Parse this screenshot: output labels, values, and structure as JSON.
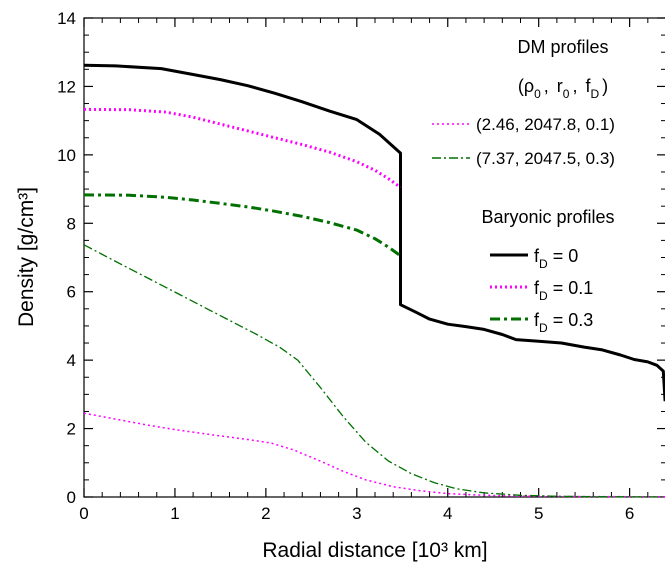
{
  "chart_data": {
    "type": "line",
    "xlabel": "Radial distance [10³ km]",
    "ylabel": "Density [g/cm³]",
    "xlim": [
      0,
      6.4
    ],
    "ylim": [
      0,
      14
    ],
    "xticks": [
      "0",
      "1",
      "2",
      "3",
      "4",
      "5",
      "6"
    ],
    "yticks": [
      "0",
      "2",
      "4",
      "6",
      "8",
      "10",
      "12",
      "14"
    ],
    "grid": false,
    "legend_placement": "top-right",
    "legend": {
      "dm_header": "DM profiles",
      "dm_params": {
        "open": "(",
        "rho": "ρ",
        "rho_sub": "0",
        "sep1": ",",
        "r": "r",
        "r_sub": "0",
        "sep2": ",",
        "f": "f",
        "f_sub": "D",
        "close": ")"
      },
      "dm_entries": [
        {
          "label": "(2.46, 2047.8, 0.1)"
        },
        {
          "label": "(7.37, 2047.5, 0.3)"
        }
      ],
      "baryonic_header": "Baryonic profiles",
      "baryonic_entries": [
        {
          "prefix": "f",
          "sub": "D",
          "suffix": " = 0"
        },
        {
          "prefix": "f",
          "sub": "D",
          "suffix": " = 0.1"
        },
        {
          "prefix": "f",
          "sub": "D",
          "suffix": " = 0.3"
        }
      ]
    },
    "series": [
      {
        "group": "baryonic",
        "color": "#000000",
        "style": "solid",
        "points": [
          [
            0,
            12.62
          ],
          [
            0.35,
            12.6
          ],
          [
            0.85,
            12.52
          ],
          [
            1.2,
            12.35
          ],
          [
            1.5,
            12.2
          ],
          [
            1.8,
            12.02
          ],
          [
            2.1,
            11.8
          ],
          [
            2.4,
            11.55
          ],
          [
            2.7,
            11.28
          ],
          [
            3.0,
            11.03
          ],
          [
            3.25,
            10.6
          ],
          [
            3.48,
            10.05
          ],
          [
            3.48,
            5.62
          ],
          [
            3.65,
            5.4
          ],
          [
            3.8,
            5.2
          ],
          [
            4.0,
            5.05
          ],
          [
            4.2,
            4.98
          ],
          [
            4.4,
            4.9
          ],
          [
            4.6,
            4.75
          ],
          [
            4.75,
            4.6
          ],
          [
            5.0,
            4.55
          ],
          [
            5.25,
            4.5
          ],
          [
            5.5,
            4.38
          ],
          [
            5.7,
            4.3
          ],
          [
            5.9,
            4.15
          ],
          [
            6.05,
            4.02
          ],
          [
            6.2,
            3.95
          ],
          [
            6.3,
            3.85
          ],
          [
            6.37,
            3.68
          ],
          [
            6.39,
            2.8
          ]
        ]
      },
      {
        "group": "baryonic",
        "color": "#ff00ff",
        "style": "dotted",
        "points": [
          [
            0,
            11.33
          ],
          [
            0.5,
            11.32
          ],
          [
            0.9,
            11.25
          ],
          [
            1.2,
            11.1
          ],
          [
            1.5,
            10.9
          ],
          [
            1.8,
            10.7
          ],
          [
            2.1,
            10.5
          ],
          [
            2.4,
            10.3
          ],
          [
            2.7,
            10.08
          ],
          [
            3.0,
            9.8
          ],
          [
            3.2,
            9.55
          ],
          [
            3.35,
            9.3
          ],
          [
            3.48,
            9.05
          ]
        ]
      },
      {
        "group": "baryonic",
        "color": "#007000",
        "style": "dashdot",
        "points": [
          [
            0,
            8.83
          ],
          [
            0.5,
            8.82
          ],
          [
            0.9,
            8.76
          ],
          [
            1.2,
            8.68
          ],
          [
            1.5,
            8.58
          ],
          [
            1.8,
            8.48
          ],
          [
            2.1,
            8.35
          ],
          [
            2.4,
            8.2
          ],
          [
            2.7,
            8.02
          ],
          [
            3.0,
            7.8
          ],
          [
            3.2,
            7.55
          ],
          [
            3.35,
            7.3
          ],
          [
            3.48,
            7.05
          ]
        ]
      },
      {
        "group": "dm",
        "color": "#ff00ff",
        "style": "dotted-thin",
        "points": [
          [
            0,
            2.45
          ],
          [
            0.3,
            2.3
          ],
          [
            0.7,
            2.1
          ],
          [
            1.0,
            1.97
          ],
          [
            1.4,
            1.82
          ],
          [
            1.8,
            1.68
          ],
          [
            2.05,
            1.58
          ],
          [
            2.3,
            1.38
          ],
          [
            2.6,
            1.05
          ],
          [
            2.85,
            0.75
          ],
          [
            3.1,
            0.5
          ],
          [
            3.4,
            0.3
          ],
          [
            3.7,
            0.18
          ],
          [
            4.0,
            0.1
          ],
          [
            4.3,
            0.06
          ],
          [
            4.7,
            0.03
          ],
          [
            5.2,
            0.015
          ],
          [
            6.4,
            0.005
          ]
        ]
      },
      {
        "group": "dm",
        "color": "#007000",
        "style": "dashdot-thin",
        "points": [
          [
            0,
            7.37
          ],
          [
            0.3,
            6.95
          ],
          [
            0.7,
            6.4
          ],
          [
            1.1,
            5.85
          ],
          [
            1.5,
            5.3
          ],
          [
            1.9,
            4.75
          ],
          [
            2.15,
            4.38
          ],
          [
            2.35,
            4.0
          ],
          [
            2.6,
            3.2
          ],
          [
            2.85,
            2.35
          ],
          [
            3.1,
            1.6
          ],
          [
            3.35,
            1.05
          ],
          [
            3.6,
            0.68
          ],
          [
            3.85,
            0.42
          ],
          [
            4.1,
            0.24
          ],
          [
            4.4,
            0.12
          ],
          [
            4.8,
            0.05
          ],
          [
            5.2,
            0.02
          ],
          [
            5.8,
            0.006
          ],
          [
            6.4,
            0.002
          ]
        ]
      }
    ]
  }
}
